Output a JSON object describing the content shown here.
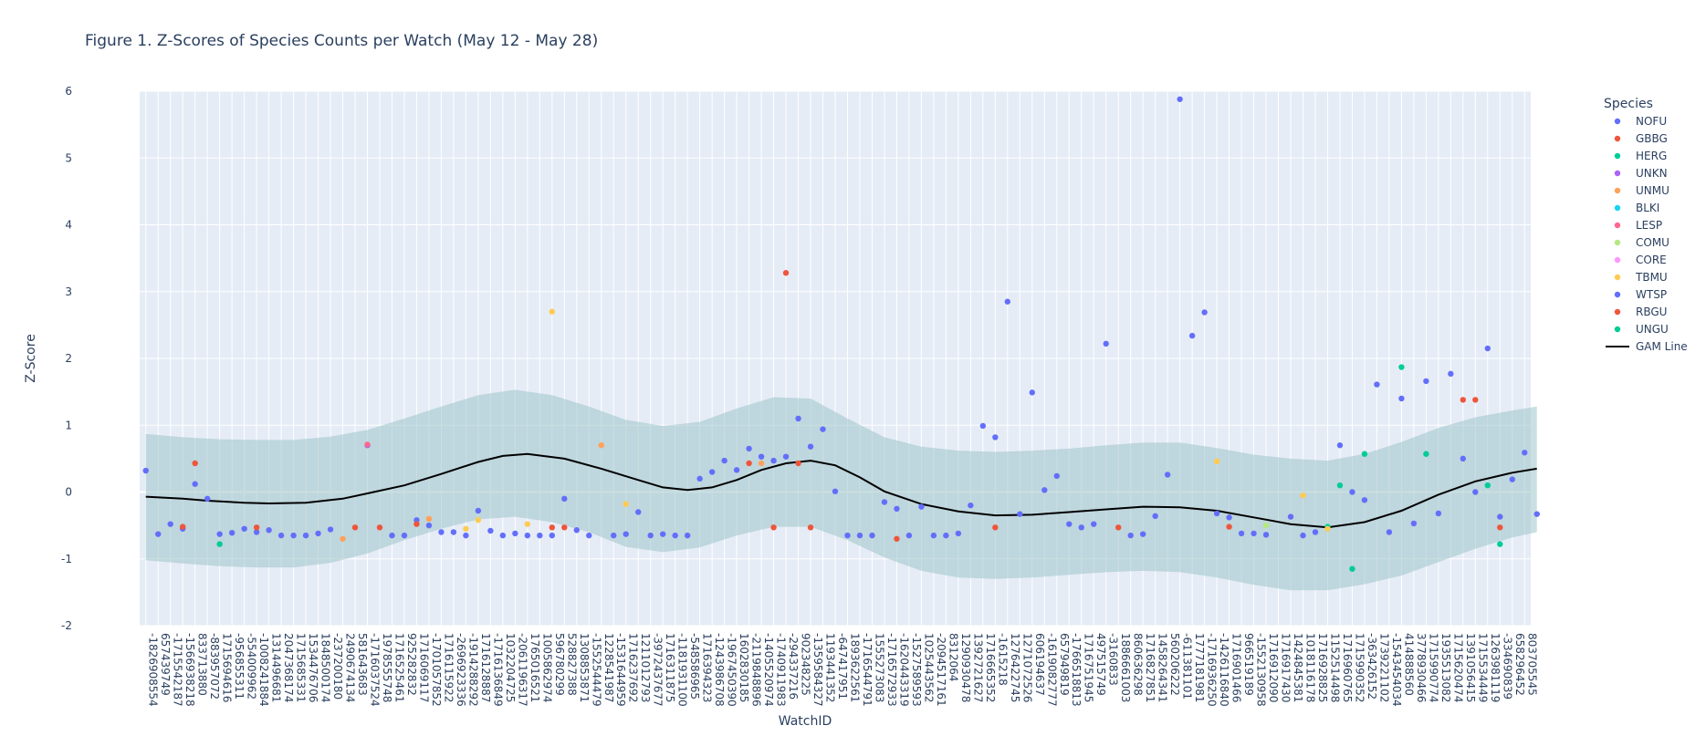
{
  "chart_data": {
    "type": "scatter",
    "title": "Figure 1. Z-Scores of Species Counts per Watch (May 12 - May 28)",
    "xlabel": "WatchID",
    "ylabel": "Z-Score",
    "ylim": [
      -2,
      6
    ],
    "yticks": [
      -2,
      -1,
      0,
      1,
      2,
      3,
      4,
      5,
      6
    ],
    "grid": true,
    "legend_title": "Species",
    "legend_position": "right",
    "categories": [
      "-1826908554",
      "657439749",
      "-1715542187",
      "-1566938218",
      "833713880",
      "-883957072",
      "1715694616",
      "-956855311",
      "-554009962",
      "-1008241884",
      "1314496681",
      "2047368174",
      "1715685331",
      "1534476706",
      "1848500174",
      "-237200180",
      "2490674134",
      "581643683",
      "-1716037524",
      "1978555748",
      "1716525461",
      "925282832",
      "1716069117",
      "-1701057852",
      "1716115922",
      "-2696923336",
      "-1914288292",
      "1716128887",
      "-1716136849",
      "1032204725",
      "-2061196317",
      "1765016521",
      "1005862974",
      "596780299",
      "528827388",
      "1308853871",
      "-1552544479",
      "1228541987",
      "-1531644959",
      "1716237692",
      "1211012793",
      "-3972437677",
      "1716311875",
      "-1181931100",
      "-548586965",
      "1716394323",
      "-1243986708",
      "-1967450390",
      "1602830185",
      "-2119848896",
      "-1405520974",
      "-1740911983",
      "-294337216",
      "902348225",
      "-1359584327",
      "1193441352",
      "-647417951",
      "1893622561",
      "-1716544791",
      "1555273083",
      "-1716572933",
      "-1620443319",
      "-1527589593",
      "1025443562",
      "-2094517161",
      "8312064",
      "1290930478",
      "1392721627",
      "1716665352",
      "-1615218",
      "1276422745",
      "1271072526",
      "606194637",
      "-1619082777",
      "657949819",
      "-1766518813",
      "1716751945",
      "497515749",
      "-3160833",
      "1886661003",
      "860636298",
      "1716827851",
      "1458264341",
      "560206222",
      "-611381101",
      "1777181981",
      "-1716936250",
      "-1426116840",
      "1716901466",
      "966519189",
      "-1552130958",
      "1716912090",
      "1716917430",
      "1424845381",
      "1018116178",
      "1716928825",
      "1152514498",
      "1716960765",
      "1715990352",
      "-363426152",
      "1739221102",
      "-1543454034",
      "414888560",
      "3778930466",
      "1715990774",
      "1935513082",
      "1715620474",
      "1391056415",
      "1715534449",
      "1263981119",
      "-334690839",
      "658296452",
      "803705545"
    ],
    "series": [
      {
        "name": "NOFU",
        "color": "#636efa",
        "points": [
          [
            0,
            0.32
          ],
          [
            1,
            -0.63
          ],
          [
            2,
            -0.48
          ],
          [
            3,
            -0.55
          ],
          [
            4,
            0.12
          ],
          [
            5,
            -0.1
          ],
          [
            6,
            -0.63
          ],
          [
            7,
            -0.61
          ],
          [
            8,
            -0.55
          ],
          [
            9,
            -0.6
          ],
          [
            10,
            -0.57
          ],
          [
            11,
            -0.65
          ],
          [
            12,
            -0.65
          ],
          [
            13,
            -0.65
          ],
          [
            14,
            -0.62
          ],
          [
            15,
            -0.56
          ],
          [
            18,
            0.7
          ],
          [
            20,
            -0.65
          ],
          [
            21,
            -0.65
          ],
          [
            22,
            -0.42
          ],
          [
            23,
            -0.5
          ],
          [
            24,
            -0.6
          ],
          [
            25,
            -0.6
          ],
          [
            26,
            -0.65
          ],
          [
            27,
            -0.28
          ],
          [
            28,
            -0.58
          ],
          [
            29,
            -0.65
          ],
          [
            30,
            -0.62
          ],
          [
            31,
            -0.65
          ],
          [
            32,
            -0.65
          ],
          [
            33,
            -0.65
          ],
          [
            34,
            -0.1
          ],
          [
            35,
            -0.57
          ],
          [
            36,
            -0.65
          ],
          [
            38,
            -0.65
          ],
          [
            39,
            -0.63
          ],
          [
            40,
            -0.3
          ],
          [
            41,
            -0.65
          ],
          [
            42,
            -0.63
          ],
          [
            43,
            -0.65
          ],
          [
            44,
            -0.65
          ],
          [
            45,
            0.2
          ],
          [
            46,
            0.3
          ],
          [
            47,
            0.47
          ],
          [
            48,
            0.33
          ],
          [
            49,
            0.65
          ],
          [
            50,
            0.53
          ],
          [
            51,
            0.47
          ],
          [
            52,
            0.53
          ],
          [
            53,
            1.1
          ],
          [
            54,
            0.68
          ],
          [
            55,
            0.94
          ],
          [
            56,
            0.01
          ],
          [
            57,
            -0.65
          ],
          [
            58,
            -0.65
          ],
          [
            59,
            -0.65
          ],
          [
            60,
            -0.15
          ],
          [
            61,
            -0.25
          ],
          [
            62,
            -0.65
          ],
          [
            63,
            -0.22
          ],
          [
            64,
            -0.65
          ],
          [
            65,
            -0.65
          ],
          [
            66,
            -0.62
          ],
          [
            67,
            -0.2
          ],
          [
            68,
            0.99
          ],
          [
            69,
            0.82
          ],
          [
            70,
            2.85
          ],
          [
            71,
            -0.33
          ],
          [
            72,
            1.49
          ],
          [
            73,
            0.03
          ],
          [
            74,
            0.24
          ],
          [
            75,
            -0.48
          ],
          [
            76,
            -0.53
          ],
          [
            77,
            -0.48
          ],
          [
            78,
            2.22
          ],
          [
            80,
            -0.65
          ],
          [
            81,
            -0.63
          ],
          [
            82,
            -0.36
          ],
          [
            83,
            0.26
          ],
          [
            84,
            5.88
          ],
          [
            85,
            2.34
          ],
          [
            86,
            2.69
          ],
          [
            87,
            -0.32
          ],
          [
            88,
            -0.38
          ],
          [
            89,
            -0.62
          ],
          [
            90,
            -0.62
          ],
          [
            91,
            -0.64
          ],
          [
            93,
            -0.37
          ],
          [
            94,
            -0.65
          ],
          [
            95,
            -0.6
          ],
          [
            97,
            0.7
          ],
          [
            98,
            0.0
          ],
          [
            99,
            -0.12
          ],
          [
            100,
            1.61
          ],
          [
            101,
            -0.6
          ],
          [
            102,
            1.4
          ],
          [
            103,
            -0.47
          ],
          [
            104,
            1.66
          ],
          [
            105,
            -0.32
          ],
          [
            106,
            1.77
          ],
          [
            107,
            0.5
          ],
          [
            108,
            0.0
          ],
          [
            109,
            2.15
          ],
          [
            110,
            -0.37
          ],
          [
            111,
            0.19
          ],
          [
            112,
            0.59
          ],
          [
            113,
            -0.33
          ]
        ]
      },
      {
        "name": "GBBG",
        "color": "#EF553B",
        "points": [
          [
            3,
            -0.52
          ],
          [
            4,
            0.43
          ],
          [
            9,
            -0.53
          ],
          [
            17,
            -0.53
          ],
          [
            19,
            -0.53
          ],
          [
            22,
            -0.48
          ],
          [
            33,
            -0.53
          ],
          [
            34,
            -0.53
          ],
          [
            49,
            0.43
          ],
          [
            51,
            -0.53
          ],
          [
            52,
            3.28
          ],
          [
            53,
            0.43
          ],
          [
            54,
            -0.53
          ],
          [
            61,
            -0.7
          ],
          [
            69,
            -0.53
          ],
          [
            79,
            -0.53
          ],
          [
            88,
            -0.52
          ],
          [
            110,
            -0.53
          ]
        ]
      },
      {
        "name": "HERG",
        "color": "#00cc96",
        "points": [
          [
            6,
            -0.78
          ],
          [
            96,
            -0.52
          ],
          [
            97,
            0.1
          ],
          [
            98,
            -1.15
          ],
          [
            99,
            0.57
          ],
          [
            102,
            1.87
          ],
          [
            104,
            0.57
          ],
          [
            109,
            0.1
          ],
          [
            110,
            -0.78
          ]
        ]
      },
      {
        "name": "UNKN",
        "color": "#ab63fa",
        "points": []
      },
      {
        "name": "UNMU",
        "color": "#FFA15A",
        "points": [
          [
            16,
            -0.7
          ],
          [
            23,
            -0.4
          ],
          [
            37,
            0.7
          ],
          [
            50,
            0.43
          ]
        ]
      },
      {
        "name": "BLKI",
        "color": "#19d3f3",
        "points": []
      },
      {
        "name": "LESP",
        "color": "#FF6692",
        "points": [
          [
            18,
            0.71
          ]
        ]
      },
      {
        "name": "COMU",
        "color": "#B6E880",
        "points": [
          [
            91,
            -0.5
          ]
        ]
      },
      {
        "name": "CORE",
        "color": "#FF97FF",
        "points": []
      },
      {
        "name": "TBMU",
        "color": "#FECB52",
        "points": [
          [
            26,
            -0.55
          ],
          [
            27,
            -0.42
          ],
          [
            31,
            -0.48
          ],
          [
            33,
            2.7
          ],
          [
            39,
            -0.18
          ],
          [
            87,
            0.46
          ],
          [
            94,
            -0.05
          ],
          [
            96,
            -0.55
          ]
        ]
      },
      {
        "name": "WTSP",
        "color": "#636efa",
        "points": []
      },
      {
        "name": "RBGU",
        "color": "#EF553B",
        "points": [
          [
            107,
            1.38
          ],
          [
            108,
            1.38
          ]
        ]
      },
      {
        "name": "UNGU",
        "color": "#00cc96",
        "points": []
      }
    ],
    "gam_line": {
      "name": "GAM Line",
      "color": "#000000",
      "points": [
        [
          0,
          -0.07
        ],
        [
          3,
          -0.1
        ],
        [
          5,
          -0.13
        ],
        [
          8,
          -0.16
        ],
        [
          10,
          -0.17
        ],
        [
          13,
          -0.16
        ],
        [
          16,
          -0.1
        ],
        [
          18,
          -0.02
        ],
        [
          21,
          0.1
        ],
        [
          24,
          0.27
        ],
        [
          27,
          0.45
        ],
        [
          29,
          0.54
        ],
        [
          31,
          0.57
        ],
        [
          34,
          0.5
        ],
        [
          37,
          0.35
        ],
        [
          40,
          0.18
        ],
        [
          42,
          0.07
        ],
        [
          44,
          0.03
        ],
        [
          46,
          0.07
        ],
        [
          48,
          0.18
        ],
        [
          50,
          0.33
        ],
        [
          52,
          0.43
        ],
        [
          54,
          0.47
        ],
        [
          56,
          0.4
        ],
        [
          58,
          0.22
        ],
        [
          60,
          0.01
        ],
        [
          63,
          -0.18
        ],
        [
          66,
          -0.29
        ],
        [
          69,
          -0.35
        ],
        [
          72,
          -0.34
        ],
        [
          75,
          -0.3
        ],
        [
          78,
          -0.26
        ],
        [
          81,
          -0.22
        ],
        [
          84,
          -0.23
        ],
        [
          87,
          -0.28
        ],
        [
          90,
          -0.38
        ],
        [
          93,
          -0.48
        ],
        [
          96,
          -0.53
        ],
        [
          99,
          -0.45
        ],
        [
          102,
          -0.28
        ],
        [
          105,
          -0.04
        ],
        [
          108,
          0.16
        ],
        [
          111,
          0.29
        ],
        [
          113,
          0.35
        ]
      ]
    },
    "gam_band": {
      "upper": [
        [
          0,
          0.87
        ],
        [
          3,
          0.82
        ],
        [
          6,
          0.79
        ],
        [
          9,
          0.78
        ],
        [
          12,
          0.78
        ],
        [
          15,
          0.83
        ],
        [
          18,
          0.93
        ],
        [
          21,
          1.1
        ],
        [
          24,
          1.28
        ],
        [
          27,
          1.45
        ],
        [
          30,
          1.53
        ],
        [
          33,
          1.45
        ],
        [
          36,
          1.28
        ],
        [
          39,
          1.08
        ],
        [
          42,
          0.99
        ],
        [
          45,
          1.05
        ],
        [
          48,
          1.25
        ],
        [
          51,
          1.42
        ],
        [
          54,
          1.4
        ],
        [
          57,
          1.1
        ],
        [
          60,
          0.82
        ],
        [
          63,
          0.68
        ],
        [
          66,
          0.62
        ],
        [
          69,
          0.6
        ],
        [
          72,
          0.62
        ],
        [
          75,
          0.65
        ],
        [
          78,
          0.7
        ],
        [
          81,
          0.74
        ],
        [
          84,
          0.74
        ],
        [
          87,
          0.66
        ],
        [
          90,
          0.56
        ],
        [
          93,
          0.5
        ],
        [
          96,
          0.47
        ],
        [
          99,
          0.57
        ],
        [
          102,
          0.75
        ],
        [
          105,
          0.96
        ],
        [
          108,
          1.12
        ],
        [
          111,
          1.22
        ],
        [
          113,
          1.28
        ]
      ],
      "lower": [
        [
          0,
          -1.02
        ],
        [
          3,
          -1.07
        ],
        [
          6,
          -1.11
        ],
        [
          9,
          -1.13
        ],
        [
          12,
          -1.13
        ],
        [
          15,
          -1.06
        ],
        [
          18,
          -0.92
        ],
        [
          21,
          -0.72
        ],
        [
          24,
          -0.55
        ],
        [
          27,
          -0.41
        ],
        [
          30,
          -0.37
        ],
        [
          33,
          -0.45
        ],
        [
          36,
          -0.6
        ],
        [
          39,
          -0.82
        ],
        [
          42,
          -0.9
        ],
        [
          45,
          -0.83
        ],
        [
          48,
          -0.65
        ],
        [
          51,
          -0.52
        ],
        [
          54,
          -0.52
        ],
        [
          57,
          -0.72
        ],
        [
          60,
          -0.98
        ],
        [
          63,
          -1.18
        ],
        [
          66,
          -1.28
        ],
        [
          69,
          -1.3
        ],
        [
          72,
          -1.28
        ],
        [
          75,
          -1.24
        ],
        [
          78,
          -1.2
        ],
        [
          81,
          -1.18
        ],
        [
          84,
          -1.2
        ],
        [
          87,
          -1.28
        ],
        [
          90,
          -1.39
        ],
        [
          93,
          -1.47
        ],
        [
          96,
          -1.47
        ],
        [
          99,
          -1.38
        ],
        [
          102,
          -1.25
        ],
        [
          105,
          -1.05
        ],
        [
          108,
          -0.85
        ],
        [
          111,
          -0.68
        ],
        [
          113,
          -0.6
        ]
      ]
    }
  }
}
